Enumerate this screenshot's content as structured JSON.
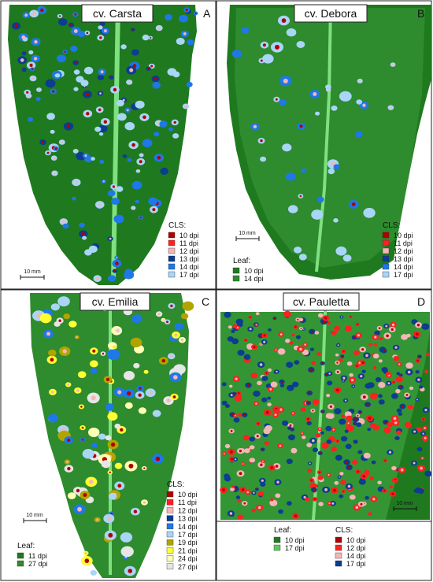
{
  "colors": {
    "leaf_dark": "#1f7a1f",
    "leaf_mid": "#2e8b2e",
    "leaf_light": "#5cc85c",
    "vein": "#7ee07e",
    "lesion_10": "#b00000",
    "lesion_11": "#ff2020",
    "lesion_12": "#f4b6b6",
    "lesion_13": "#0b3d91",
    "lesion_14": "#1e78e6",
    "lesion_17": "#a9d5f7",
    "lesion_19": "#b2a400",
    "lesion_21": "#ffff33",
    "lesion_24": "#ffffb3",
    "lesion_27": "#e6e6e6"
  },
  "panels": [
    {
      "id": "A",
      "title": "cv. Carsta",
      "letter": "A",
      "scale": "10 mm",
      "legend_cls_title": "CLS:",
      "legend_cls": [
        {
          "label": "10 dpi",
          "color": "#b00000"
        },
        {
          "label": "11 dpi",
          "color": "#ff2020"
        },
        {
          "label": "12 dpi",
          "color": "#f4b6b6"
        },
        {
          "label": "13 dpi",
          "color": "#0b3d91"
        },
        {
          "label": "14 dpi",
          "color": "#1e78e6"
        },
        {
          "label": "17 dpi",
          "color": "#a9d5f7"
        }
      ],
      "legend_leaf_title": "",
      "legend_leaf": []
    },
    {
      "id": "B",
      "title": "cv. Debora",
      "letter": "B",
      "scale": "10 mm",
      "legend_cls_title": "CLS:",
      "legend_cls": [
        {
          "label": "10 dpi",
          "color": "#b00000"
        },
        {
          "label": "11 dpi",
          "color": "#ff2020"
        },
        {
          "label": "12 dpi",
          "color": "#f4b6b6"
        },
        {
          "label": "13 dpi",
          "color": "#0b3d91"
        },
        {
          "label": "14 dpi",
          "color": "#1e78e6"
        },
        {
          "label": "17 dpi",
          "color": "#a9d5f7"
        }
      ],
      "legend_leaf_title": "Leaf:",
      "legend_leaf": [
        {
          "label": "10 dpi",
          "color": "#1f7a1f"
        },
        {
          "label": "14 dpi",
          "color": "#2e8b2e"
        }
      ]
    },
    {
      "id": "C",
      "title": "cv. Emilia",
      "letter": "C",
      "scale": "10 mm",
      "legend_cls_title": "CLS:",
      "legend_cls": [
        {
          "label": "10 dpi",
          "color": "#b00000"
        },
        {
          "label": "11 dpi",
          "color": "#ff2020"
        },
        {
          "label": "12 dpi",
          "color": "#f4b6b6"
        },
        {
          "label": "13 dpi",
          "color": "#0b3d91"
        },
        {
          "label": "14 dpi",
          "color": "#1e78e6"
        },
        {
          "label": "17 dpi",
          "color": "#a9d5f7"
        },
        {
          "label": "19 dpi",
          "color": "#b2a400"
        },
        {
          "label": "21 dpi",
          "color": "#ffff33"
        },
        {
          "label": "24 dpi",
          "color": "#ffffb3"
        },
        {
          "label": "27 dpi",
          "color": "#e6e6e6"
        }
      ],
      "legend_leaf_title": "Leaf:",
      "legend_leaf": [
        {
          "label": "11 dpi",
          "color": "#1f7a1f"
        },
        {
          "label": "27 dpi",
          "color": "#2e8b2e"
        }
      ]
    },
    {
      "id": "D",
      "title": "cv. Pauletta",
      "letter": "D",
      "scale": "10 mm",
      "legend_cls_title": "CLS:",
      "legend_cls": [
        {
          "label": "10 dpi",
          "color": "#b00000"
        },
        {
          "label": "12 dpi",
          "color": "#ff2020"
        },
        {
          "label": "14 dpi",
          "color": "#f4b6b6"
        },
        {
          "label": "17 dpi",
          "color": "#0b3d91"
        }
      ],
      "legend_leaf_title": "Leaf:",
      "legend_leaf": [
        {
          "label": "10 dpi",
          "color": "#1f7a1f"
        },
        {
          "label": "17 dpi",
          "color": "#5cc85c"
        }
      ]
    }
  ]
}
